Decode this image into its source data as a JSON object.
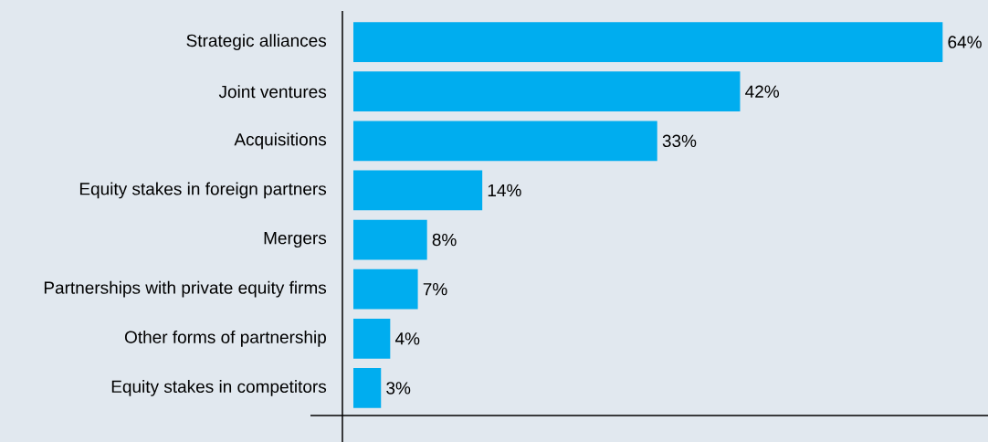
{
  "chart_data": {
    "type": "bar",
    "orientation": "horizontal",
    "categories": [
      "Strategic alliances",
      "Joint ventures",
      "Acquisitions",
      "Equity stakes in foreign partners",
      "Mergers",
      "Partnerships with private equity firms",
      "Other forms of partnership",
      "Equity stakes in competitors"
    ],
    "values": [
      64,
      42,
      33,
      14,
      8,
      7,
      4,
      3
    ],
    "value_labels": [
      "64%",
      "42%",
      "33%",
      "14%",
      "8%",
      "7%",
      "4%",
      "3%"
    ],
    "color": "#00adef"
  }
}
